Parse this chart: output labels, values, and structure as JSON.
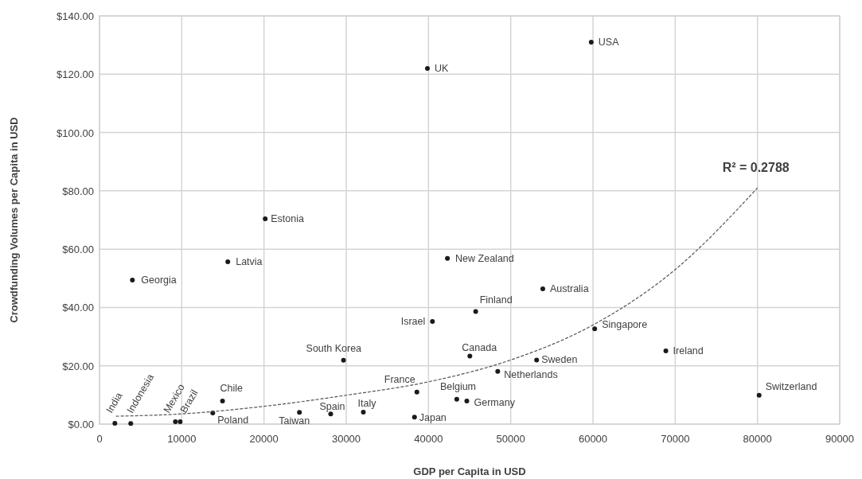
{
  "chart_data": {
    "type": "scatter",
    "xlabel": "GDP per Capita in USD",
    "ylabel": "Crowdfunding Volumes per Capita in USD",
    "xlim": [
      0,
      90000
    ],
    "ylim": [
      0,
      140
    ],
    "xticks": [
      0,
      10000,
      20000,
      30000,
      40000,
      50000,
      60000,
      70000,
      80000,
      90000
    ],
    "yticks": [
      {
        "value": 0,
        "label": "$0.00"
      },
      {
        "value": 20,
        "label": "$20.00"
      },
      {
        "value": 40,
        "label": "$40.00"
      },
      {
        "value": 60,
        "label": "$60.00"
      },
      {
        "value": 80,
        "label": "$80.00"
      },
      {
        "value": 100,
        "label": "$100.00"
      },
      {
        "value": 120,
        "label": "$120.00"
      },
      {
        "value": 140,
        "label": "$140.00"
      }
    ],
    "grid": true,
    "series": [
      {
        "marker": "circle",
        "color": "#1a1a1a",
        "x": [
          1870,
          3800,
          9230,
          9810,
          13770,
          14960,
          24310,
          28110,
          32080,
          29670,
          38590,
          38300,
          40480,
          45740,
          45030,
          43440,
          44660,
          48420,
          53150,
          60210,
          68860,
          80200,
          53900,
          42300,
          39870,
          59790,
          20150,
          15600,
          4000
        ],
        "values": [
          0.3,
          0.2,
          0.8,
          0.8,
          3.8,
          7.9,
          4.0,
          3.5,
          4.1,
          21.9,
          11.0,
          2.4,
          35.2,
          38.6,
          23.3,
          8.5,
          7.9,
          18.1,
          22.0,
          32.7,
          25.1,
          9.9,
          46.4,
          56.8,
          122.0,
          131.0,
          70.4,
          55.7,
          49.4
        ]
      },
      {
        "type": "line",
        "line_style": "dashed",
        "color": "#555555",
        "x": [
          2000,
          10000,
          20000,
          30000,
          40000,
          50000,
          60000,
          70000,
          80000
        ],
        "values": [
          2.7,
          3.5,
          6.1,
          9.9,
          14.5,
          22,
          34,
          53,
          81
        ]
      }
    ],
    "annotations": [
      {
        "text": "India",
        "x": 1870,
        "y": 0.3
      },
      {
        "text": "Indonesia",
        "x": 3800,
        "y": 0.2
      },
      {
        "text": "Mexico",
        "x": 9230,
        "y": 0.8
      },
      {
        "text": "Brazil",
        "x": 9810,
        "y": 0.8
      },
      {
        "text": "Poland",
        "x": 13770,
        "y": 3.8
      },
      {
        "text": "Chile",
        "x": 14960,
        "y": 7.9
      },
      {
        "text": "Taiwan",
        "x": 24310,
        "y": 4.0
      },
      {
        "text": "Spain",
        "x": 28110,
        "y": 3.5
      },
      {
        "text": "Italy",
        "x": 32080,
        "y": 4.1
      },
      {
        "text": "South Korea",
        "x": 29670,
        "y": 21.9
      },
      {
        "text": "France",
        "x": 38590,
        "y": 11.0
      },
      {
        "text": "Japan",
        "x": 38300,
        "y": 2.4
      },
      {
        "text": "Israel",
        "x": 40480,
        "y": 35.2
      },
      {
        "text": "Finland",
        "x": 45740,
        "y": 38.6
      },
      {
        "text": "Canada",
        "x": 45030,
        "y": 23.3
      },
      {
        "text": "Belgium",
        "x": 43440,
        "y": 8.5
      },
      {
        "text": "Germany",
        "x": 44660,
        "y": 7.9
      },
      {
        "text": "Netherlands",
        "x": 48420,
        "y": 18.1
      },
      {
        "text": "Sweden",
        "x": 53150,
        "y": 22.0
      },
      {
        "text": "Singapore",
        "x": 60210,
        "y": 32.7
      },
      {
        "text": "Ireland",
        "x": 68860,
        "y": 25.1
      },
      {
        "text": "Switzerland",
        "x": 80200,
        "y": 9.9
      },
      {
        "text": "Australia",
        "x": 53900,
        "y": 46.4
      },
      {
        "text": "New Zealand",
        "x": 42300,
        "y": 56.8
      },
      {
        "text": "UK",
        "x": 39870,
        "y": 122.0
      },
      {
        "text": "USA",
        "x": 59790,
        "y": 131.0
      },
      {
        "text": "Estonia",
        "x": 20150,
        "y": 70.4
      },
      {
        "text": "Latvia",
        "x": 15600,
        "y": 55.7
      },
      {
        "text": "Georgia",
        "x": 4000,
        "y": 49.4
      },
      {
        "text": "R² = 0.2788",
        "x": 80000,
        "y": 81
      }
    ]
  }
}
